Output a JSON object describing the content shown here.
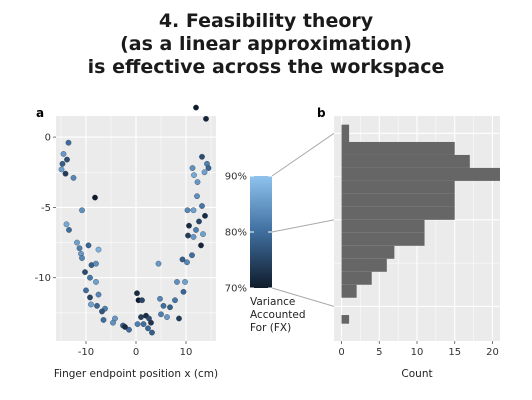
{
  "title": {
    "line1": "4. Feasibility theory",
    "line2": "(as a linear approximation)",
    "line3": "is effective across the workspace"
  },
  "colors": {
    "panel_bg": "#ebebeb",
    "grid": "#ffffff",
    "bar": "#666666",
    "colormap_high": "#8fc3ee",
    "colormap_mid": "#3f6e9e",
    "colormap_low": "#101c2b",
    "point_stroke": "#1b2a3b"
  },
  "chart_data": [
    {
      "panel": "a",
      "type": "scatter",
      "xlabel": "Finger endpoint position x (cm)",
      "ylabel": "",
      "xlim": [
        -16,
        16
      ],
      "ylim": [
        -14.5,
        1.5
      ],
      "x_ticks": [
        -10,
        0,
        10
      ],
      "x_tick_labels": [
        "-10",
        "0",
        "10"
      ],
      "y_ticks": [
        0,
        -5,
        -10
      ],
      "y_tick_labels": [
        "0",
        "-5",
        "-10"
      ],
      "grid": true,
      "color_encoding": "Variance Accounted For (FX)",
      "points": [
        {
          "x": -13.5,
          "y": -0.4,
          "v": 0.8
        },
        {
          "x": -14.5,
          "y": -1.2,
          "v": 0.85
        },
        {
          "x": -14.7,
          "y": -1.9,
          "v": 0.78
        },
        {
          "x": -13.8,
          "y": -1.6,
          "v": 0.76
        },
        {
          "x": -14.1,
          "y": -2.6,
          "v": 0.74
        },
        {
          "x": -12.5,
          "y": -2.9,
          "v": 0.83
        },
        {
          "x": -14.9,
          "y": -2.3,
          "v": 0.86
        },
        {
          "x": -8.2,
          "y": -4.3,
          "v": 0.7
        },
        {
          "x": -10.8,
          "y": -5.2,
          "v": 0.84
        },
        {
          "x": -13.9,
          "y": -6.2,
          "v": 0.87
        },
        {
          "x": -13.4,
          "y": -6.6,
          "v": 0.8
        },
        {
          "x": -11.8,
          "y": -7.5,
          "v": 0.86
        },
        {
          "x": -11.3,
          "y": -7.9,
          "v": 0.82
        },
        {
          "x": -11.0,
          "y": -8.3,
          "v": 0.85
        },
        {
          "x": -9.5,
          "y": -7.7,
          "v": 0.79
        },
        {
          "x": -7.5,
          "y": -8.0,
          "v": 0.88
        },
        {
          "x": -10.8,
          "y": -8.6,
          "v": 0.83
        },
        {
          "x": -8.9,
          "y": -9.1,
          "v": 0.78
        },
        {
          "x": -8.0,
          "y": -9.0,
          "v": 0.84
        },
        {
          "x": -10.2,
          "y": -9.6,
          "v": 0.76
        },
        {
          "x": -9.2,
          "y": -10.0,
          "v": 0.81
        },
        {
          "x": -8.0,
          "y": -10.3,
          "v": 0.86
        },
        {
          "x": -10.0,
          "y": -10.9,
          "v": 0.8
        },
        {
          "x": -9.2,
          "y": -11.4,
          "v": 0.75
        },
        {
          "x": -7.5,
          "y": -11.2,
          "v": 0.83
        },
        {
          "x": -9.0,
          "y": -11.9,
          "v": 0.86
        },
        {
          "x": -7.8,
          "y": -12.0,
          "v": 0.79
        },
        {
          "x": -6.2,
          "y": -12.2,
          "v": 0.82
        },
        {
          "x": -6.8,
          "y": -12.4,
          "v": 0.77
        },
        {
          "x": -4.2,
          "y": -12.9,
          "v": 0.85
        },
        {
          "x": -6.5,
          "y": -13.0,
          "v": 0.8
        },
        {
          "x": -4.6,
          "y": -13.2,
          "v": 0.84
        },
        {
          "x": -2.6,
          "y": -13.4,
          "v": 0.78
        },
        {
          "x": -1.4,
          "y": -13.7,
          "v": 0.8
        },
        {
          "x": -2.2,
          "y": -13.5,
          "v": 0.72
        },
        {
          "x": 0.3,
          "y": -13.3,
          "v": 0.82
        },
        {
          "x": 0.2,
          "y": -11.1,
          "v": 0.72
        },
        {
          "x": 0.5,
          "y": -11.6,
          "v": 0.7
        },
        {
          "x": 1.2,
          "y": -11.6,
          "v": 0.75
        },
        {
          "x": 1.0,
          "y": -12.8,
          "v": 0.74
        },
        {
          "x": 2.0,
          "y": -12.7,
          "v": 0.72
        },
        {
          "x": 2.6,
          "y": -12.9,
          "v": 0.76
        },
        {
          "x": 1.5,
          "y": -13.3,
          "v": 0.8
        },
        {
          "x": 2.4,
          "y": -13.6,
          "v": 0.79
        },
        {
          "x": 3.2,
          "y": -13.9,
          "v": 0.78
        },
        {
          "x": 3.0,
          "y": -13.2,
          "v": 0.73
        },
        {
          "x": 4.5,
          "y": -9.0,
          "v": 0.85
        },
        {
          "x": 4.8,
          "y": -11.5,
          "v": 0.83
        },
        {
          "x": 5.5,
          "y": -12.0,
          "v": 0.8
        },
        {
          "x": 6.8,
          "y": -12.1,
          "v": 0.78
        },
        {
          "x": 5.0,
          "y": -12.6,
          "v": 0.82
        },
        {
          "x": 6.2,
          "y": -12.8,
          "v": 0.85
        },
        {
          "x": 7.8,
          "y": -11.6,
          "v": 0.81
        },
        {
          "x": 8.6,
          "y": -12.9,
          "v": 0.74
        },
        {
          "x": 9.5,
          "y": -11.0,
          "v": 0.79
        },
        {
          "x": 8.2,
          "y": -10.3,
          "v": 0.84
        },
        {
          "x": 9.8,
          "y": -10.3,
          "v": 0.86
        },
        {
          "x": 10.2,
          "y": -8.9,
          "v": 0.83
        },
        {
          "x": 9.3,
          "y": -8.7,
          "v": 0.78
        },
        {
          "x": 11.2,
          "y": -8.4,
          "v": 0.8
        },
        {
          "x": 10.4,
          "y": -7.0,
          "v": 0.74
        },
        {
          "x": 10.6,
          "y": -6.3,
          "v": 0.72
        },
        {
          "x": 11.5,
          "y": -7.1,
          "v": 0.85
        },
        {
          "x": 12.0,
          "y": -6.6,
          "v": 0.82
        },
        {
          "x": 10.3,
          "y": -5.2,
          "v": 0.83
        },
        {
          "x": 11.5,
          "y": -5.2,
          "v": 0.86
        },
        {
          "x": 12.2,
          "y": -4.2,
          "v": 0.84
        },
        {
          "x": 13.2,
          "y": -4.9,
          "v": 0.81
        },
        {
          "x": 13.8,
          "y": -5.6,
          "v": 0.72
        },
        {
          "x": 12.6,
          "y": -6.0,
          "v": 0.75
        },
        {
          "x": 13.4,
          "y": -6.9,
          "v": 0.86
        },
        {
          "x": 13.0,
          "y": -7.7,
          "v": 0.71
        },
        {
          "x": 12.3,
          "y": -3.2,
          "v": 0.85
        },
        {
          "x": 11.6,
          "y": -2.7,
          "v": 0.87
        },
        {
          "x": 11.3,
          "y": -2.2,
          "v": 0.84
        },
        {
          "x": 14.2,
          "y": -1.9,
          "v": 0.82
        },
        {
          "x": 13.7,
          "y": -2.5,
          "v": 0.86
        },
        {
          "x": 12.0,
          "y": 2.1,
          "v": 0.7
        },
        {
          "x": 14.0,
          "y": 1.3,
          "v": 0.71
        },
        {
          "x": 13.2,
          "y": -1.4,
          "v": 0.76
        },
        {
          "x": 14.5,
          "y": -2.2,
          "v": 0.79
        }
      ]
    },
    {
      "panel": "b",
      "type": "bar",
      "orientation": "horizontal",
      "xlabel": "Count",
      "ylabel": "",
      "xlim": [
        -1,
        21
      ],
      "x_ticks": [
        0,
        5,
        10,
        15,
        20
      ],
      "x_tick_labels": [
        "0",
        "5",
        "10",
        "15",
        "20"
      ],
      "ylim": [
        0.66,
        0.92
      ],
      "grid": true,
      "bins": [
        {
          "from": 0.68,
          "to": 0.69,
          "count": 1
        },
        {
          "from": 0.69,
          "to": 0.7,
          "count": 0
        },
        {
          "from": 0.7,
          "to": 0.71,
          "count": 0
        },
        {
          "from": 0.71,
          "to": 0.725,
          "count": 2
        },
        {
          "from": 0.725,
          "to": 0.74,
          "count": 4
        },
        {
          "from": 0.74,
          "to": 0.755,
          "count": 6
        },
        {
          "from": 0.755,
          "to": 0.77,
          "count": 7
        },
        {
          "from": 0.77,
          "to": 0.785,
          "count": 11
        },
        {
          "from": 0.785,
          "to": 0.8,
          "count": 11
        },
        {
          "from": 0.8,
          "to": 0.815,
          "count": 15
        },
        {
          "from": 0.815,
          "to": 0.83,
          "count": 15
        },
        {
          "from": 0.83,
          "to": 0.845,
          "count": 15
        },
        {
          "from": 0.845,
          "to": 0.86,
          "count": 21
        },
        {
          "from": 0.86,
          "to": 0.875,
          "count": 17
        },
        {
          "from": 0.875,
          "to": 0.89,
          "count": 15
        },
        {
          "from": 0.89,
          "to": 0.91,
          "count": 1
        }
      ]
    }
  ],
  "colorbar": {
    "ticks": [
      0.9,
      0.8,
      0.7
    ],
    "tick_labels": [
      "90%",
      "80%",
      "70%"
    ],
    "range": [
      0.7,
      0.9
    ],
    "label_line1": "Variance",
    "label_line2": "Accounted",
    "label_line3": "For (FX)"
  }
}
